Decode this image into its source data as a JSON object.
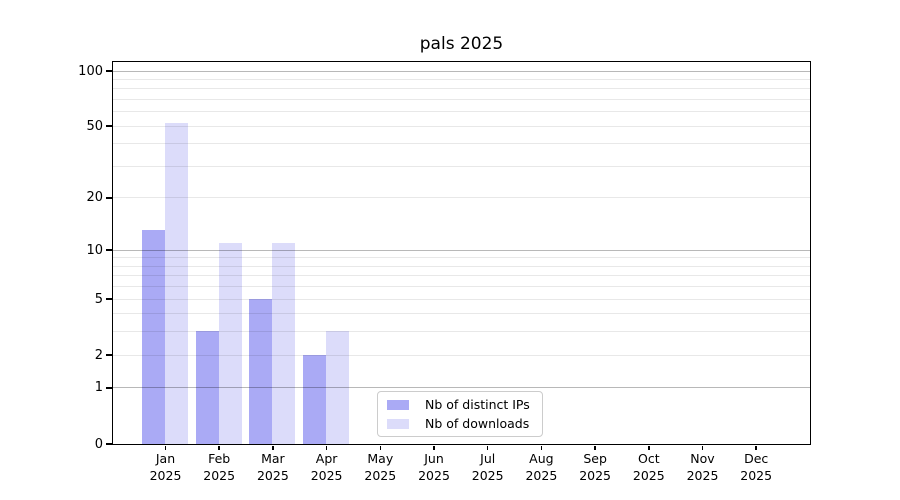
{
  "chart_data": {
    "type": "bar",
    "title": "pals 2025",
    "categories": [
      "Jan",
      "Feb",
      "Mar",
      "Apr",
      "May",
      "Jun",
      "Jul",
      "Aug",
      "Sep",
      "Oct",
      "Nov",
      "Dec"
    ],
    "x_tick_labels": [
      [
        "Jan",
        "2025"
      ],
      [
        "Feb",
        "2025"
      ],
      [
        "Mar",
        "2025"
      ],
      [
        "Apr",
        "2025"
      ],
      [
        "May",
        "2025"
      ],
      [
        "Jun",
        "2025"
      ],
      [
        "Jul",
        "2025"
      ],
      [
        "Aug",
        "2025"
      ],
      [
        "Sep",
        "2025"
      ],
      [
        "Oct",
        "2025"
      ],
      [
        "Nov",
        "2025"
      ],
      [
        "Dec",
        "2025"
      ]
    ],
    "series": [
      {
        "name": "Nb of distinct IPs",
        "color": "#aaaaf5",
        "values": [
          13,
          3,
          5,
          2,
          0,
          0,
          0,
          0,
          0,
          0,
          0,
          0
        ]
      },
      {
        "name": "Nb of downloads",
        "color": "#dcdcfa",
        "values": [
          52,
          11,
          11,
          3,
          0,
          0,
          0,
          0,
          0,
          0,
          0,
          0
        ]
      }
    ],
    "xlabel": "",
    "ylabel": "",
    "y_scale": "log10(value+1)",
    "ylim": [
      0,
      112
    ],
    "y_ticks": [
      0,
      1,
      2,
      5,
      10,
      20,
      50,
      100
    ],
    "y_tick_labels": [
      "0",
      "1",
      "2",
      "5",
      "10",
      "20",
      "50",
      "100"
    ],
    "gridlines": {
      "decade": [
        1,
        10,
        100
      ],
      "minor": [
        2,
        3,
        4,
        5,
        6,
        7,
        8,
        9,
        20,
        30,
        40,
        50,
        60,
        70,
        80,
        90
      ],
      "drawn_above_bars": true
    },
    "legend": {
      "position": "inside-bottom-center",
      "entries": [
        {
          "label": "Nb of distinct IPs",
          "color": "#aaaaf5"
        },
        {
          "label": "Nb of downloads",
          "color": "#dcdcfa"
        }
      ]
    }
  },
  "colors": {
    "background": "#ffffff",
    "spine": "#000000",
    "grid_minor": "#e8e8e8",
    "grid_decade": "#b8b8b8",
    "bar_dark": "#aaaaf5",
    "bar_light": "#dcdcfa"
  }
}
